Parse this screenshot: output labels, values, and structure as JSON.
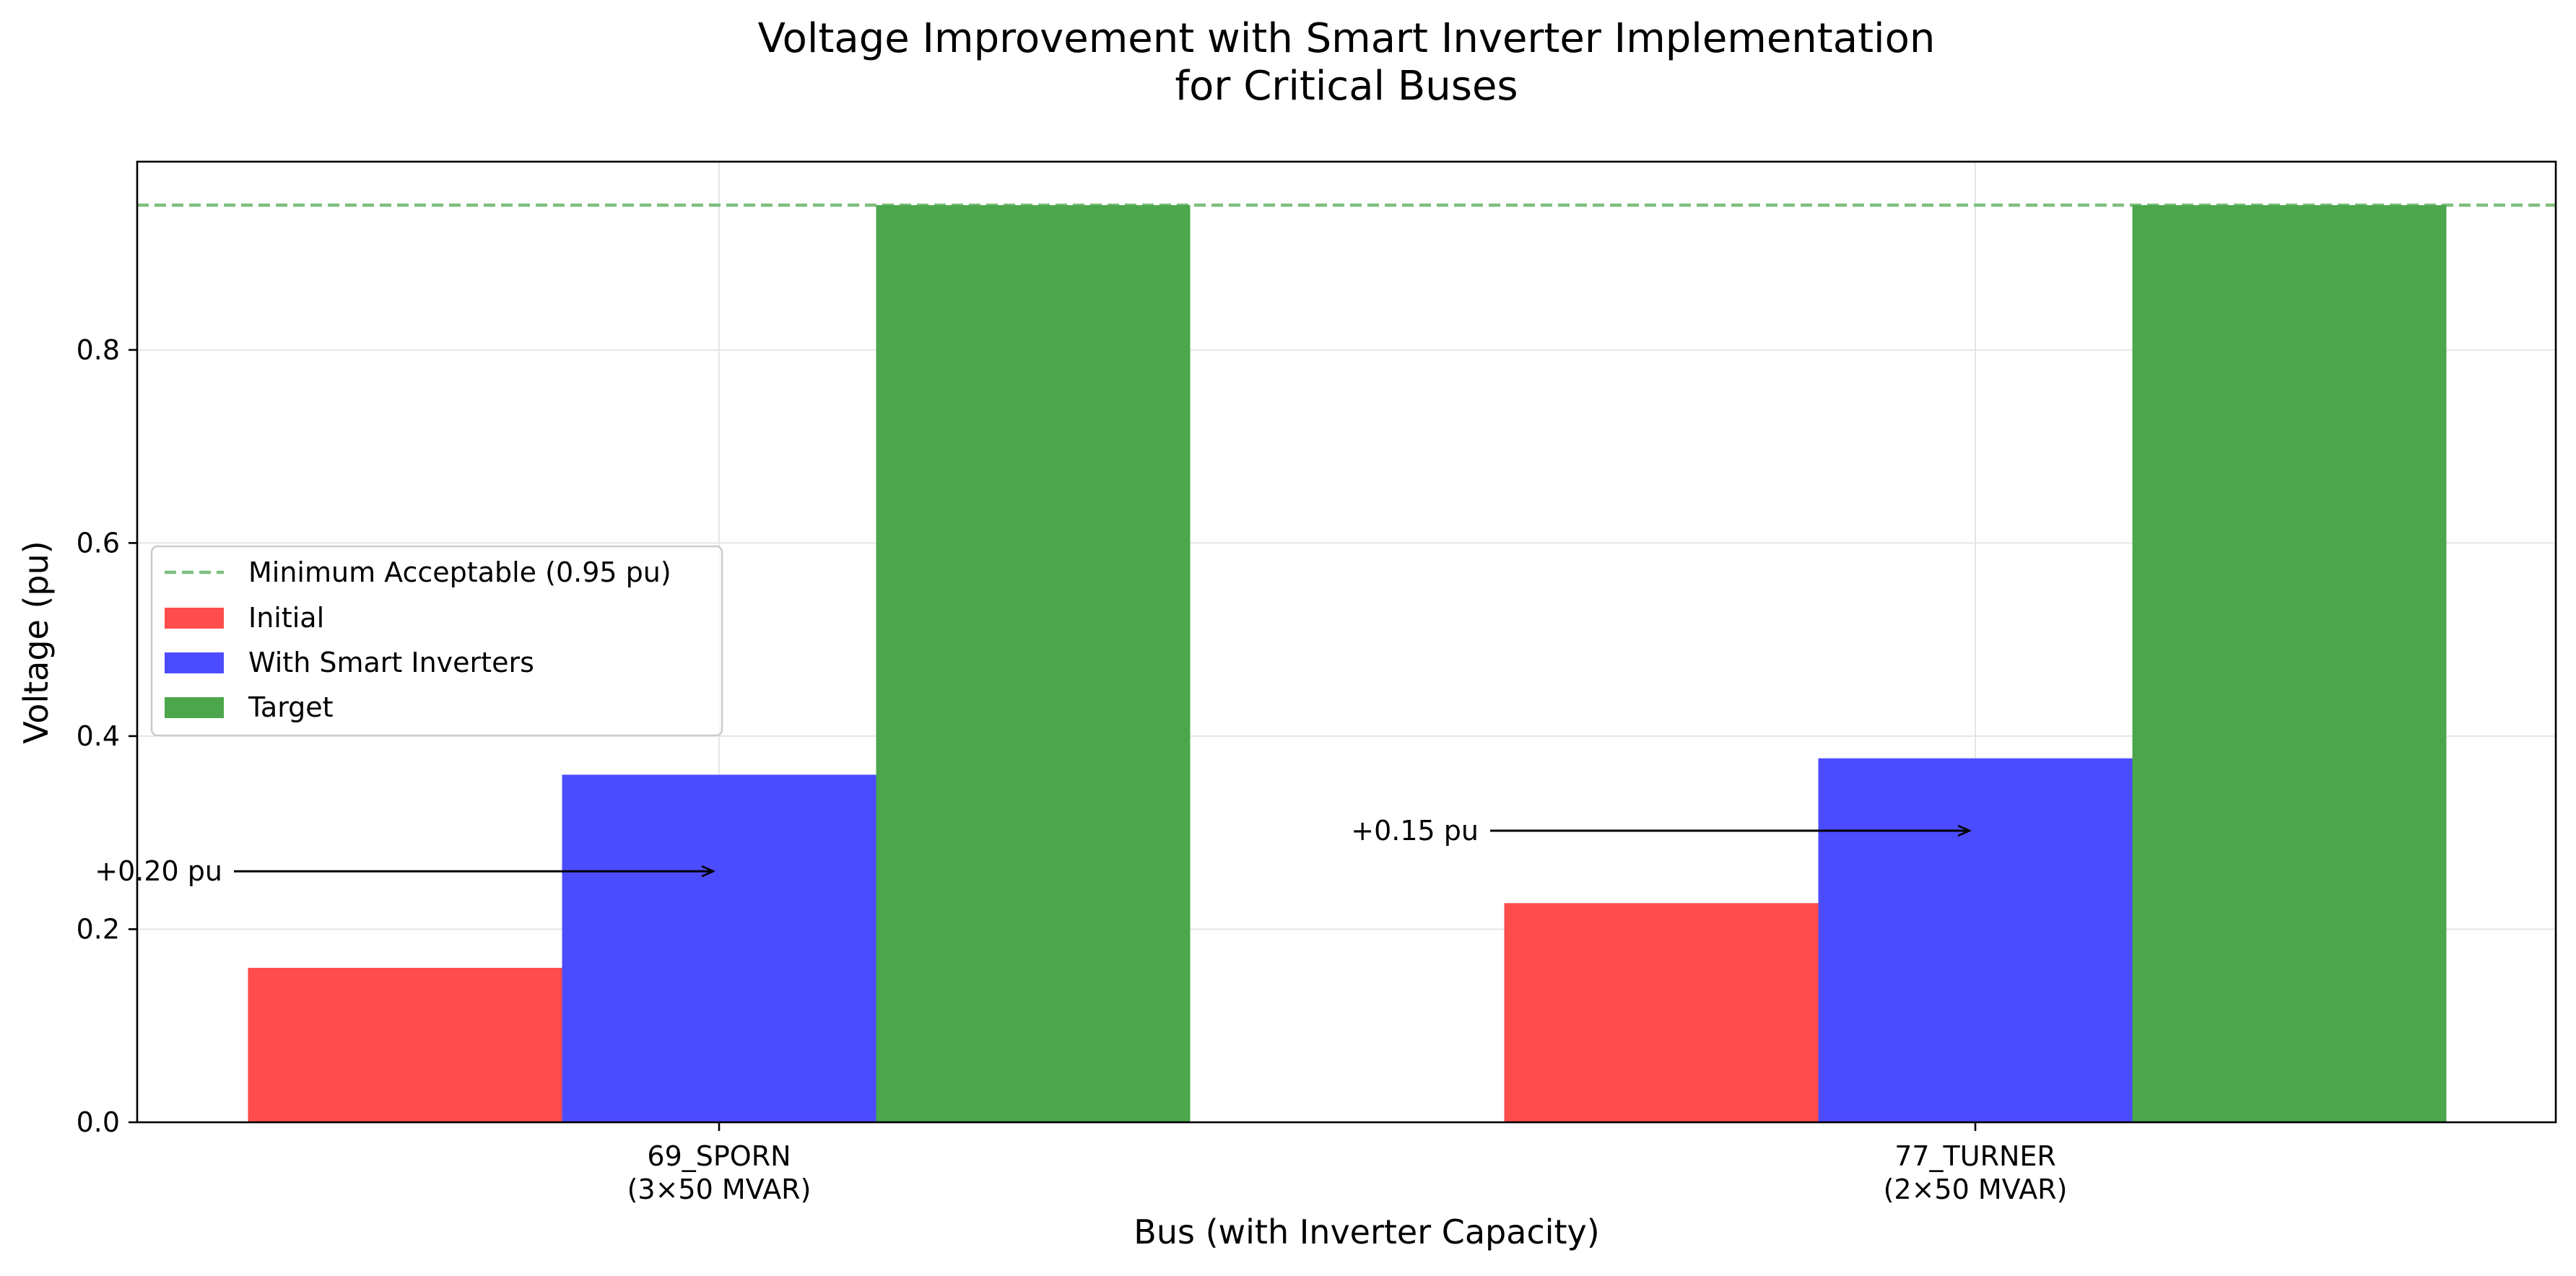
{
  "chart_data": {
    "type": "bar",
    "title_lines": [
      "Voltage Improvement with Smart Inverter Implementation",
      "for Critical Buses"
    ],
    "xlabel": "Bus (with Inverter Capacity)",
    "ylabel": "Voltage (pu)",
    "ylim": [
      0,
      0.995
    ],
    "yticks": [
      0.0,
      0.2,
      0.4,
      0.6,
      0.8
    ],
    "ytick_labels": [
      "0.0",
      "0.2",
      "0.4",
      "0.6",
      "0.8"
    ],
    "grid": true,
    "categories": [
      {
        "lines": [
          "69_SPORN",
          "(3×50 MVAR)"
        ]
      },
      {
        "lines": [
          "77_TURNER",
          "(2×50 MVAR)"
        ]
      }
    ],
    "series": [
      {
        "name": "Initial",
        "color": "#ff4c4c",
        "values": [
          0.16,
          0.227
        ]
      },
      {
        "name": "With Smart Inverters",
        "color": "#4c4cff",
        "values": [
          0.36,
          0.377
        ]
      },
      {
        "name": "Target",
        "color": "#4ca64c",
        "values": [
          0.95,
          0.95
        ]
      }
    ],
    "reference_line": {
      "name": "Minimum Acceptable (0.95 pu)",
      "value": 0.95,
      "color": "#7fbf7f",
      "style": "dashed"
    },
    "legend_position": "center-left",
    "annotations": [
      {
        "text": "+0.20 pu",
        "category_index": 0,
        "y": 0.26
      },
      {
        "text": "+0.15 pu",
        "category_index": 1,
        "y": 0.302
      }
    ]
  }
}
